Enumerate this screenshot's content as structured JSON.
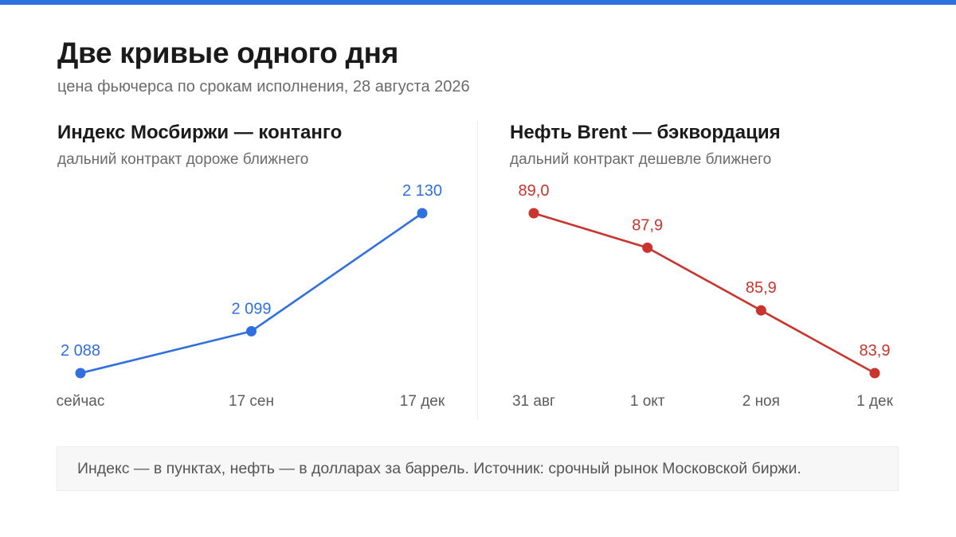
{
  "header": {
    "title": "Две кривые одного дня",
    "subtitle": "цена фьючерса по срокам исполнения, 28 августа 2026"
  },
  "colors": {
    "accent_bar": "#2f6fe0",
    "contango": "#2f6fe0",
    "backwardation": "#c9342d"
  },
  "chart_data": [
    {
      "type": "line",
      "title": "Индекс Мосбиржи — контанго",
      "subtitle": "дальний контракт дороже ближнего",
      "categories": [
        "сейчас",
        "17 сен",
        "17 дек"
      ],
      "values": [
        2088,
        2099,
        2130
      ],
      "value_labels": [
        "2 088",
        "2 099",
        "2 130"
      ],
      "ylim": [
        2088,
        2130
      ],
      "grid": false,
      "legend": "none"
    },
    {
      "type": "line",
      "title": "Нефть Brent — бэквордация",
      "subtitle": "дальний контракт дешевле ближнего",
      "categories": [
        "31 авг",
        "1 окт",
        "2 ноя",
        "1 дек"
      ],
      "values": [
        89.0,
        87.9,
        85.9,
        83.9
      ],
      "value_labels": [
        "89,0",
        "87,9",
        "85,9",
        "83,9"
      ],
      "ylim": [
        83.9,
        89.0
      ],
      "grid": false,
      "legend": "none"
    }
  ],
  "note": "Индекс — в пунктах, нефть — в долларах за баррель. Источник: срочный рынок Московской биржи."
}
